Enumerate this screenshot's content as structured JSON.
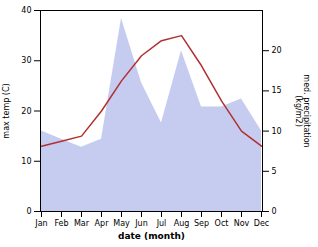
{
  "chart_data": {
    "type": "line",
    "xlabel": "date (month)",
    "ylabel": "max temp (C)",
    "y2label": "med. precipitation\n(kg/m2)",
    "categories": [
      "Jan",
      "Feb",
      "Mar",
      "Apr",
      "May",
      "Jun",
      "Jul",
      "Aug",
      "Sep",
      "Oct",
      "Nov",
      "Dec"
    ],
    "series": [
      {
        "type": "area",
        "axis": "y2",
        "color": "#c5ccf0",
        "values": [
          10,
          9,
          8,
          9,
          24,
          16,
          11,
          20,
          13,
          13,
          14,
          10
        ]
      },
      {
        "type": "line",
        "color": "#b03030",
        "values": [
          13,
          14,
          15,
          20,
          26,
          31,
          34,
          35,
          29,
          22,
          16,
          13
        ]
      }
    ],
    "ylim": [
      0,
      40
    ],
    "yticks": [
      0,
      10,
      20,
      30,
      40
    ],
    "y2lim": [
      0,
      25
    ],
    "y2ticks": [
      0,
      5,
      10,
      15,
      20
    ]
  }
}
